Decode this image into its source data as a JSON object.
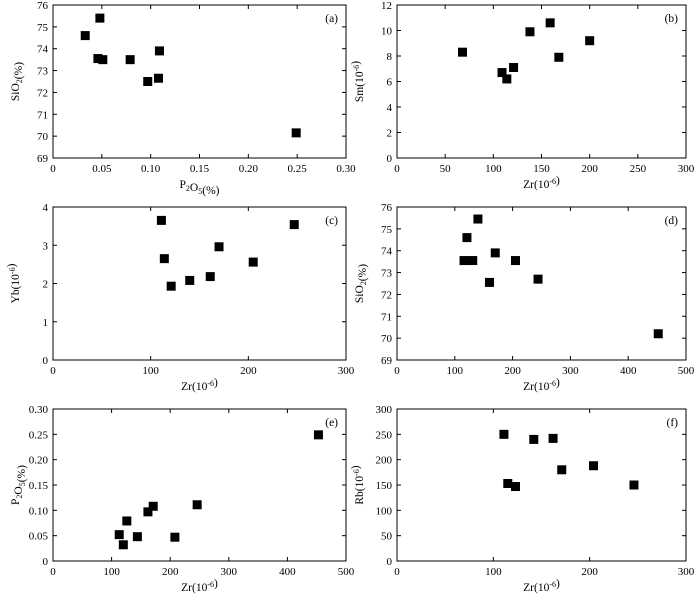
{
  "chart_data": [
    {
      "type": "scatter",
      "panel_label": "(a)",
      "xlabel": "P₂O₅(%)",
      "ylabel": "SiO₂(%)",
      "xlim": [
        0,
        0.3
      ],
      "ylim": [
        69,
        76
      ],
      "xticks": [
        "0",
        "0.05",
        "0.10",
        "0.15",
        "0.20",
        "0.25",
        "0.30"
      ],
      "yticks": [
        "69",
        "70",
        "71",
        "72",
        "73",
        "74",
        "75",
        "76"
      ],
      "points": [
        [
          0.033,
          74.6
        ],
        [
          0.046,
          73.55
        ],
        [
          0.048,
          75.4
        ],
        [
          0.051,
          73.5
        ],
        [
          0.079,
          73.5
        ],
        [
          0.097,
          72.5
        ],
        [
          0.108,
          72.65
        ],
        [
          0.109,
          73.9
        ],
        [
          0.249,
          70.15
        ]
      ]
    },
    {
      "type": "scatter",
      "panel_label": "(b)",
      "xlabel": "Zr(10⁻⁶)",
      "ylabel": "Sm(10⁻⁶)",
      "xlim": [
        0,
        300
      ],
      "ylim": [
        0,
        12
      ],
      "xticks": [
        "0",
        "50",
        "100",
        "150",
        "200",
        "250",
        "300"
      ],
      "yticks": [
        "0",
        "2",
        "4",
        "6",
        "8",
        "10",
        "12"
      ],
      "points": [
        [
          68,
          8.3
        ],
        [
          109,
          6.7
        ],
        [
          114,
          6.2
        ],
        [
          121,
          7.1
        ],
        [
          138,
          9.9
        ],
        [
          159,
          10.6
        ],
        [
          168,
          7.9
        ],
        [
          200,
          9.2
        ]
      ]
    },
    {
      "type": "scatter",
      "panel_label": "(c)",
      "xlabel": "Zr(10⁻⁶)",
      "ylabel": "Yb(10⁻⁶)",
      "xlim": [
        0,
        300
      ],
      "ylim": [
        0,
        4
      ],
      "xticks": [
        "0",
        "100",
        "200",
        "300"
      ],
      "yticks": [
        "0",
        "1",
        "2",
        "3",
        "4"
      ],
      "points": [
        [
          111,
          3.65
        ],
        [
          114,
          2.65
        ],
        [
          121,
          1.93
        ],
        [
          140,
          2.08
        ],
        [
          161,
          2.18
        ],
        [
          170,
          2.96
        ],
        [
          205,
          2.56
        ],
        [
          247,
          3.54
        ]
      ]
    },
    {
      "type": "scatter",
      "panel_label": "(d)",
      "xlabel": "Zr(10⁻⁶)",
      "ylabel": "SiO₂(%)",
      "xlim": [
        0,
        500
      ],
      "ylim": [
        69,
        76
      ],
      "xticks": [
        "0",
        "100",
        "200",
        "300",
        "400",
        "500"
      ],
      "yticks": [
        "69",
        "70",
        "71",
        "72",
        "73",
        "74",
        "75",
        "76"
      ],
      "points": [
        [
          116,
          73.55
        ],
        [
          121,
          74.6
        ],
        [
          131,
          73.55
        ],
        [
          140,
          75.45
        ],
        [
          160,
          72.55
        ],
        [
          170,
          73.9
        ],
        [
          205,
          73.55
        ],
        [
          244,
          72.7
        ],
        [
          452,
          70.2
        ]
      ]
    },
    {
      "type": "scatter",
      "panel_label": "(e)",
      "xlabel": "Zr(10⁻⁶)",
      "ylabel": "P₂O₅(%)",
      "xlim": [
        0,
        500
      ],
      "ylim": [
        0,
        0.3
      ],
      "xticks": [
        "0",
        "100",
        "200",
        "300",
        "400",
        "500"
      ],
      "yticks": [
        "0",
        "0.05",
        "0.10",
        "0.15",
        "0.20",
        "0.25",
        "0.30"
      ],
      "points": [
        [
          113,
          0.052
        ],
        [
          120,
          0.032
        ],
        [
          126,
          0.079
        ],
        [
          144,
          0.048
        ],
        [
          162,
          0.097
        ],
        [
          171,
          0.108
        ],
        [
          208,
          0.047
        ],
        [
          246,
          0.111
        ],
        [
          453,
          0.249
        ]
      ]
    },
    {
      "type": "scatter",
      "panel_label": "(f)",
      "xlabel": "Zr(10⁻⁶)",
      "ylabel": "Rb(10⁻⁶)",
      "xlim": [
        0,
        300
      ],
      "ylim": [
        0,
        300
      ],
      "xticks": [
        "0",
        "100",
        "200",
        "300"
      ],
      "yticks": [
        "0",
        "50",
        "100",
        "150",
        "200",
        "250",
        "300"
      ],
      "points": [
        [
          111,
          250
        ],
        [
          115,
          153
        ],
        [
          123,
          147
        ],
        [
          142,
          240
        ],
        [
          162,
          242
        ],
        [
          171,
          180
        ],
        [
          204,
          188
        ],
        [
          246,
          150
        ]
      ]
    }
  ]
}
